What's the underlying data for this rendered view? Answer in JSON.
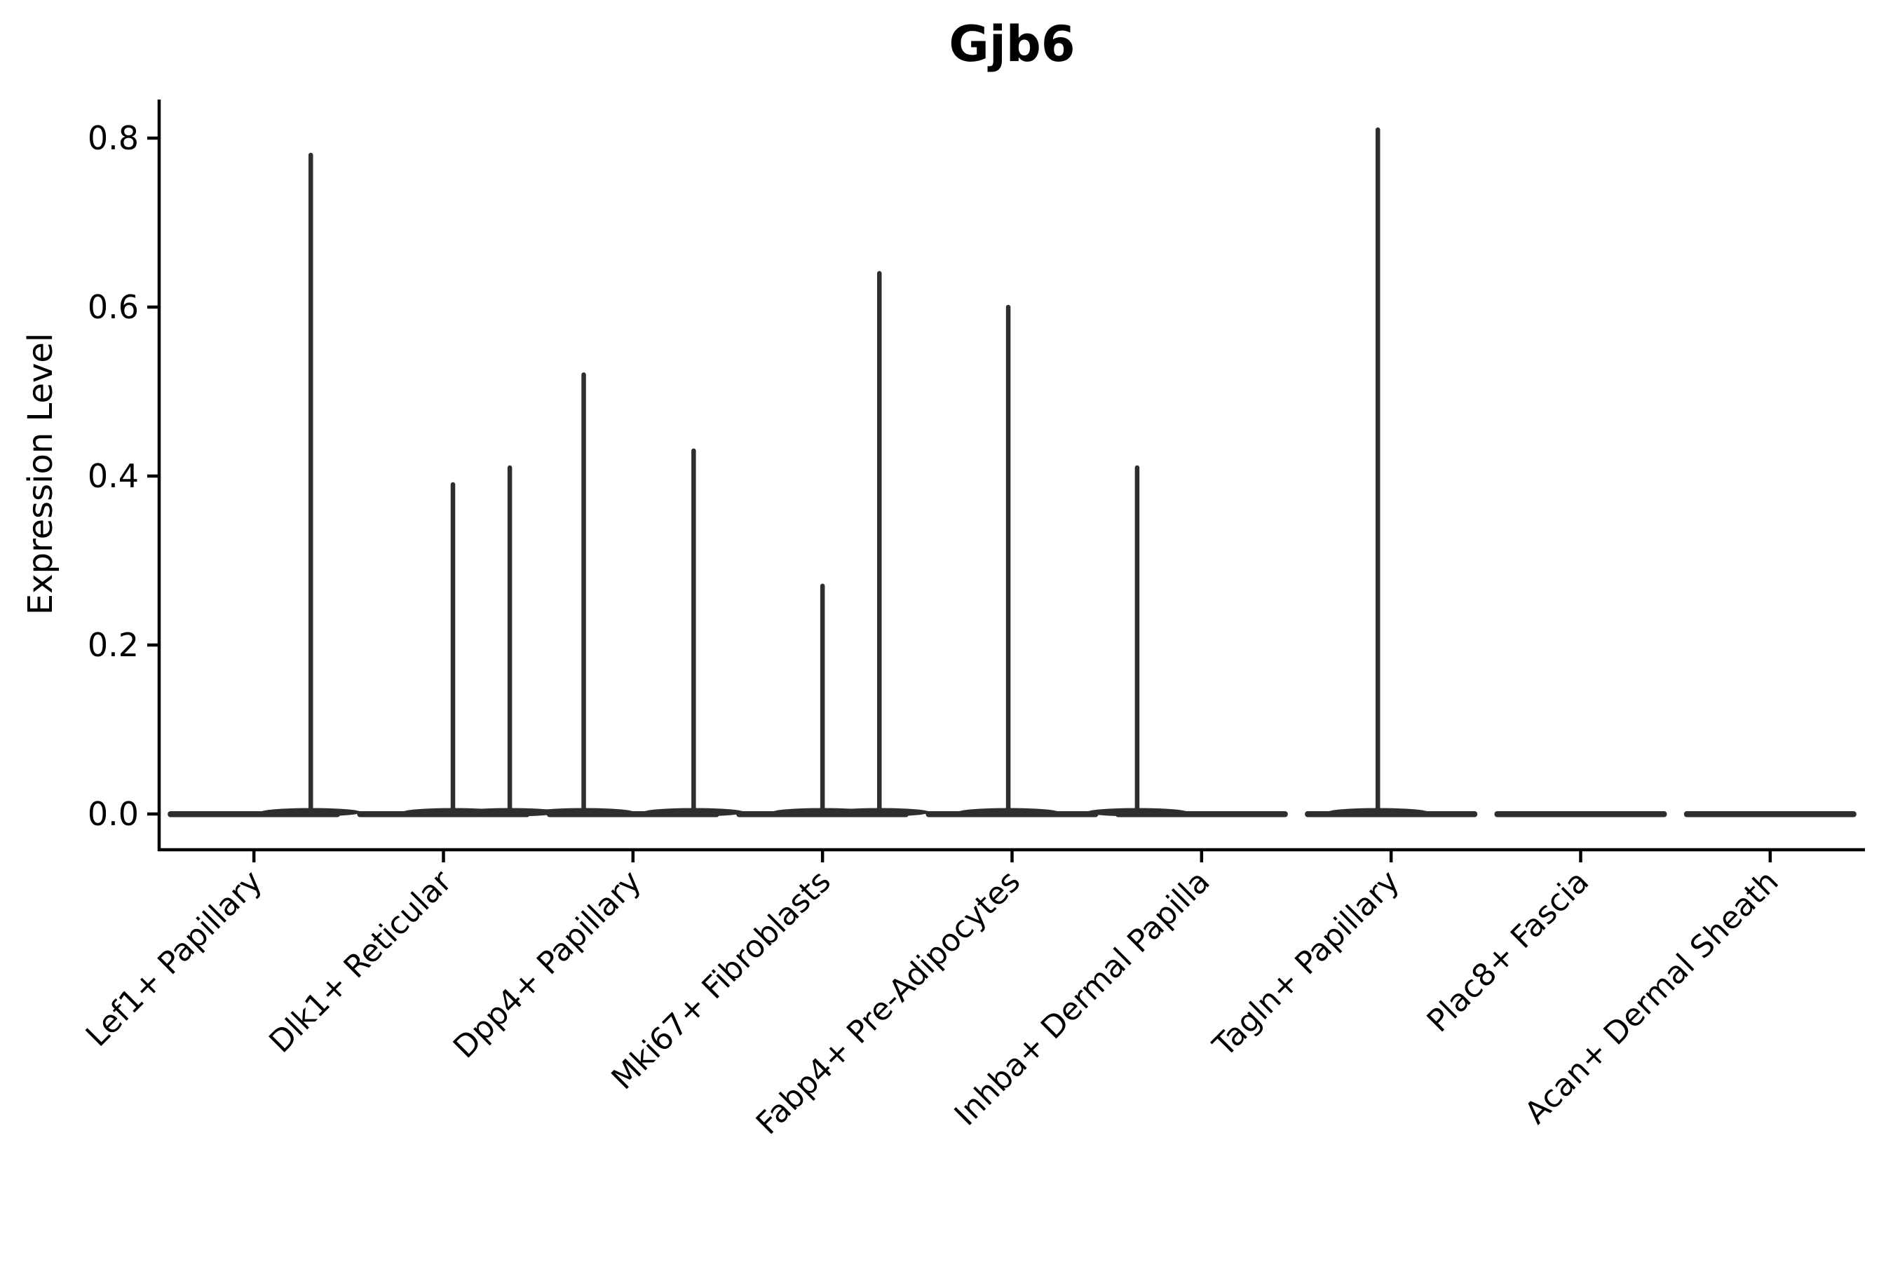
{
  "figure": {
    "title": "Gjb6",
    "ylabel": "Expression Level"
  },
  "chart_data": {
    "type": "violin",
    "title": "Gjb6",
    "xlabel": "",
    "ylabel": "Expression Level",
    "ylim": [
      -0.04,
      0.85
    ],
    "ytick_labels": [
      "0.0",
      "0.2",
      "0.4",
      "0.6",
      "0.8"
    ],
    "ytick_values": [
      0.0,
      0.2,
      0.4,
      0.6,
      0.8
    ],
    "grid": false,
    "legend": "none",
    "x_tick_rotation_deg": 45,
    "categories": [
      "Lef1+ Papillary",
      "Dlk1+ Reticular",
      "Dpp4+ Papillary",
      "Mki67+ Fibroblasts",
      "Fabp4+ Pre-Adipocytes",
      "Inhba+ Dermal Papilla",
      "Tagln+ Papillary",
      "Plac8+ Fascia",
      "Acan+ Dermal Sheath"
    ],
    "violins": [
      {
        "category": "Lef1+ Papillary",
        "base_value": 0.0,
        "spikes": [
          {
            "dx": 0.3,
            "max": 0.78
          }
        ]
      },
      {
        "category": "Dlk1+ Reticular",
        "base_value": 0.0,
        "spikes": [
          {
            "dx": 0.05,
            "max": 0.39
          },
          {
            "dx": 0.35,
            "max": 0.41
          }
        ]
      },
      {
        "category": "Dpp4+ Papillary",
        "base_value": 0.0,
        "spikes": [
          {
            "dx": -0.26,
            "max": 0.52
          },
          {
            "dx": 0.32,
            "max": 0.43
          }
        ]
      },
      {
        "category": "Mki67+ Fibroblasts",
        "base_value": 0.0,
        "spikes": [
          {
            "dx": 0.0,
            "max": 0.27
          },
          {
            "dx": 0.3,
            "max": 0.64
          }
        ]
      },
      {
        "category": "Fabp4+ Pre-Adipocytes",
        "base_value": 0.0,
        "spikes": [
          {
            "dx": -0.02,
            "max": 0.6
          }
        ]
      },
      {
        "category": "Inhba+ Dermal Papilla",
        "base_value": 0.0,
        "spikes": [
          {
            "dx": -0.34,
            "max": 0.41
          }
        ]
      },
      {
        "category": "Tagln+ Papillary",
        "base_value": 0.0,
        "spikes": [
          {
            "dx": -0.07,
            "max": 0.81
          }
        ]
      },
      {
        "category": "Plac8+ Fascia",
        "base_value": 0.0,
        "spikes": []
      },
      {
        "category": "Acan+ Dermal Sheath",
        "base_value": 0.0,
        "spikes": []
      }
    ],
    "colors": {
      "background": "#ffffff",
      "axis": "#000000",
      "text": "#000000",
      "violin": "#2e2e2e"
    }
  }
}
